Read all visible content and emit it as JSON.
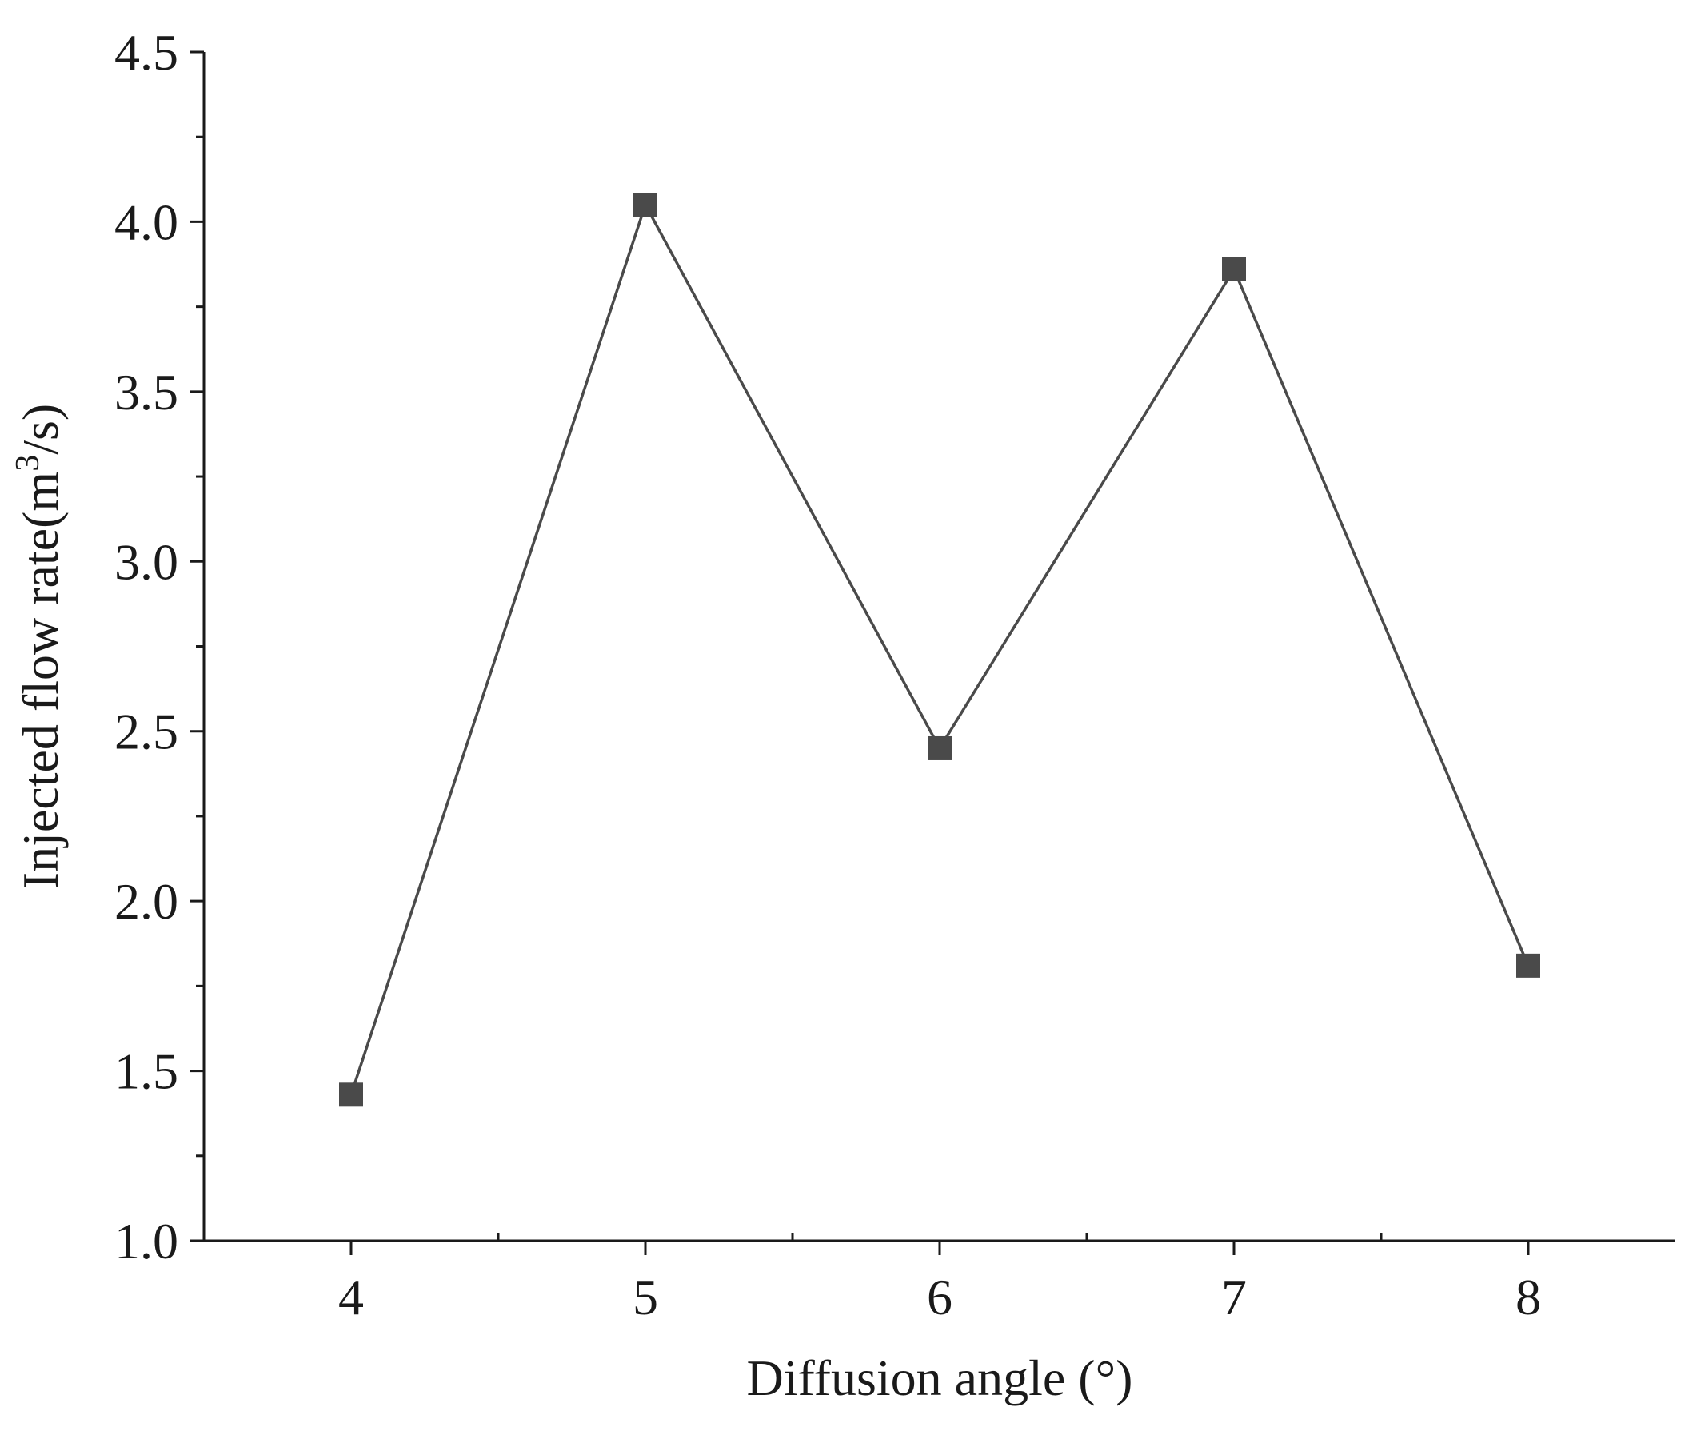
{
  "chart_data": {
    "type": "line",
    "xlabel": "Diffusion angle (°)",
    "ylabel": {
      "prefix": "Injected flow rate(m",
      "superscript": "3",
      "suffix": "/s)"
    },
    "x": [
      4,
      5,
      6,
      7,
      8
    ],
    "x_ticks": [
      "4",
      "5",
      "6",
      "7",
      "8"
    ],
    "xlim": [
      3.5,
      8.5
    ],
    "y_ticks": [
      "1.0",
      "1.5",
      "2.0",
      "2.5",
      "3.0",
      "3.5",
      "4.0",
      "4.5"
    ],
    "ylim": [
      1.0,
      4.5
    ],
    "grid": false,
    "marker": "square",
    "series": [
      {
        "values": [
          1.43,
          4.05,
          2.45,
          3.86,
          1.81
        ],
        "color": "#4a4a4a"
      }
    ]
  }
}
